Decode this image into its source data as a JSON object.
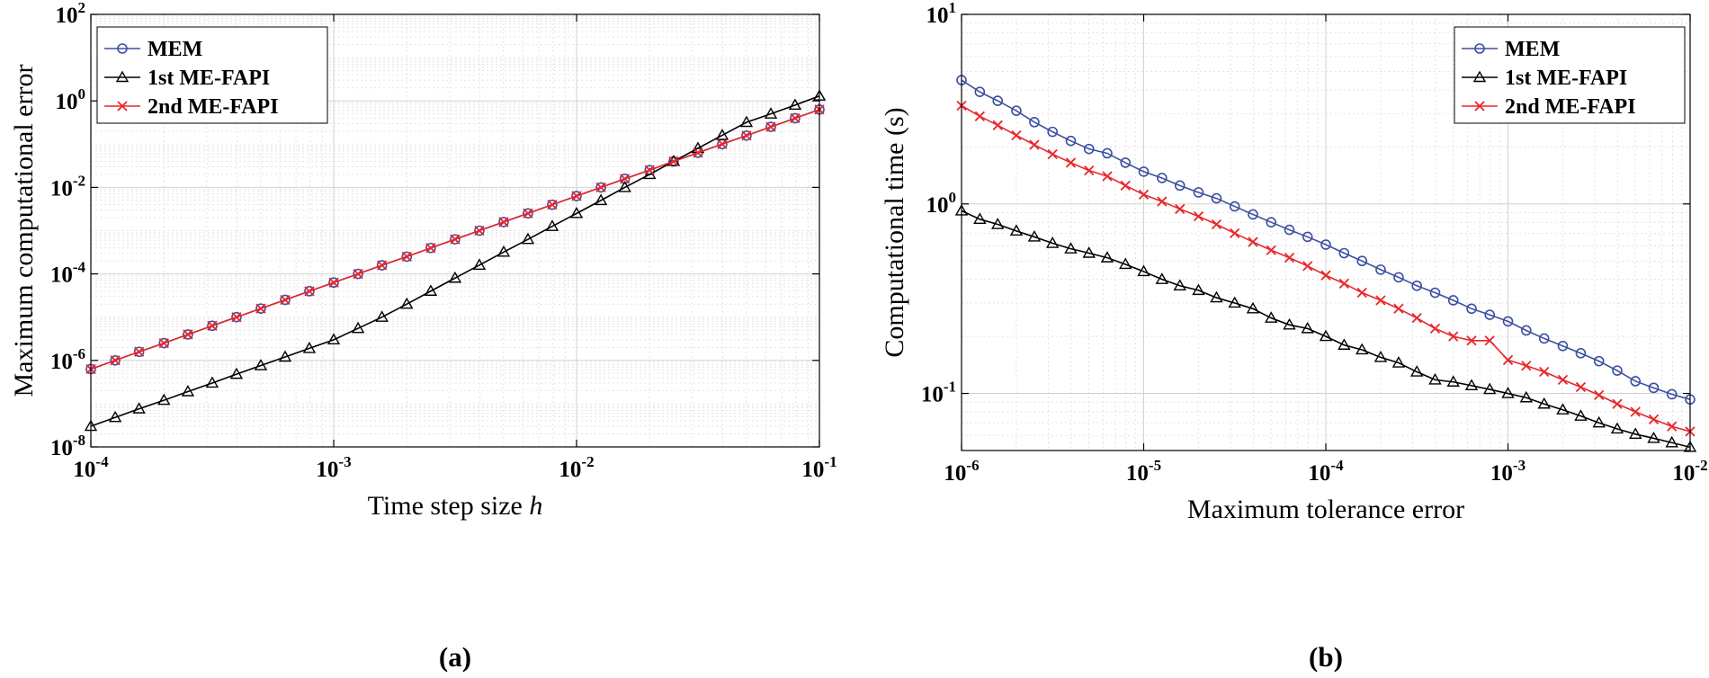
{
  "chart_data": [
    {
      "type": "line",
      "panel_label": "(a)",
      "xlabel": "Time step size h",
      "ylabel": "Maximum computational error",
      "xscale": "log",
      "yscale": "log",
      "xlim": [
        0.0001,
        0.1
      ],
      "ylim": [
        1e-08,
        100
      ],
      "xticks": [
        0.0001,
        0.001,
        0.01,
        0.1
      ],
      "yticks": [
        1e-08,
        1e-06,
        0.0001,
        0.01,
        1,
        100
      ],
      "grid": true,
      "legend": {
        "position": "top-left",
        "entries": [
          "MEM",
          "1st ME-FAPI",
          "2nd ME-FAPI"
        ]
      },
      "x": [
        0.0001,
        0.000126,
        0.000158,
        0.0002,
        0.000251,
        0.000316,
        0.000398,
        0.000501,
        0.000631,
        0.000794,
        0.001,
        0.00126,
        0.00158,
        0.002,
        0.00251,
        0.00316,
        0.00398,
        0.00501,
        0.00631,
        0.00794,
        0.01,
        0.0126,
        0.0158,
        0.02,
        0.0251,
        0.0316,
        0.0398,
        0.0501,
        0.0631,
        0.0794,
        0.1
      ],
      "series": [
        {
          "name": "MEM",
          "color": "#3d4fa0",
          "marker": "circle",
          "values": [
            6.3e-07,
            1e-06,
            1.58e-06,
            2.51e-06,
            3.98e-06,
            6.31e-06,
            1e-05,
            1.58e-05,
            2.51e-05,
            3.98e-05,
            6.31e-05,
            0.0001,
            0.000158,
            0.000251,
            0.000398,
            0.000631,
            0.001,
            0.00158,
            0.00251,
            0.00398,
            0.00631,
            0.01,
            0.0158,
            0.0251,
            0.0398,
            0.0631,
            0.1,
            0.158,
            0.251,
            0.398,
            0.631
          ]
        },
        {
          "name": "1st ME-FAPI",
          "color": "#000000",
          "marker": "triangle",
          "values": [
            3e-08,
            4.8e-08,
            7.6e-08,
            1.2e-07,
            1.9e-07,
            3e-07,
            4.8e-07,
            7.6e-07,
            1.2e-06,
            1.9e-06,
            3e-06,
            5.5e-06,
            1e-05,
            2e-05,
            4e-05,
            8e-05,
            0.00016,
            0.00032,
            0.00063,
            0.00126,
            0.0025,
            0.005,
            0.01,
            0.02,
            0.04,
            0.08,
            0.16,
            0.32,
            0.5,
            0.8,
            1.3
          ]
        },
        {
          "name": "2nd ME-FAPI",
          "color": "#e8262a",
          "marker": "x",
          "values": [
            6.3e-07,
            1e-06,
            1.58e-06,
            2.51e-06,
            3.98e-06,
            6.31e-06,
            1e-05,
            1.58e-05,
            2.51e-05,
            3.98e-05,
            6.31e-05,
            0.0001,
            0.000158,
            0.000251,
            0.000398,
            0.000631,
            0.001,
            0.00158,
            0.00251,
            0.00398,
            0.00631,
            0.01,
            0.0158,
            0.0251,
            0.0398,
            0.0631,
            0.1,
            0.158,
            0.251,
            0.398,
            0.631
          ]
        }
      ]
    },
    {
      "type": "line",
      "panel_label": "(b)",
      "xlabel": "Maximum tolerance error",
      "ylabel": "Computational time (s)",
      "xscale": "log",
      "yscale": "log",
      "xlim": [
        1e-06,
        0.01
      ],
      "ylim": [
        0.05,
        10
      ],
      "xticks": [
        1e-06,
        1e-05,
        0.0001,
        0.001,
        0.01
      ],
      "yticks": [
        0.1,
        1,
        10
      ],
      "grid": true,
      "legend": {
        "position": "top-right",
        "entries": [
          "MEM",
          "1st ME-FAPI",
          "2nd ME-FAPI"
        ]
      },
      "x": [
        1e-06,
        1.26e-06,
        1.58e-06,
        2e-06,
        2.51e-06,
        3.16e-06,
        3.98e-06,
        5.01e-06,
        6.31e-06,
        7.94e-06,
        1e-05,
        1.26e-05,
        1.58e-05,
        2e-05,
        2.51e-05,
        3.16e-05,
        3.98e-05,
        5.01e-05,
        6.31e-05,
        7.94e-05,
        0.0001,
        0.000126,
        0.000158,
        0.0002,
        0.000251,
        0.000316,
        0.000398,
        0.000501,
        0.000631,
        0.000794,
        0.001,
        0.00126,
        0.00158,
        0.002,
        0.00251,
        0.00316,
        0.00398,
        0.00501,
        0.00631,
        0.00794,
        0.01
      ],
      "series": [
        {
          "name": "MEM",
          "color": "#3d4fa0",
          "marker": "circle",
          "values": [
            4.5,
            3.9,
            3.5,
            3.1,
            2.7,
            2.4,
            2.15,
            1.95,
            1.85,
            1.65,
            1.48,
            1.37,
            1.25,
            1.15,
            1.07,
            0.97,
            0.88,
            0.8,
            0.73,
            0.67,
            0.61,
            0.55,
            0.5,
            0.45,
            0.41,
            0.37,
            0.34,
            0.31,
            0.28,
            0.26,
            0.24,
            0.215,
            0.195,
            0.178,
            0.163,
            0.148,
            0.132,
            0.116,
            0.107,
            0.099,
            0.093
          ]
        },
        {
          "name": "1st ME-FAPI",
          "color": "#000000",
          "marker": "triangle",
          "values": [
            0.92,
            0.83,
            0.78,
            0.72,
            0.67,
            0.62,
            0.58,
            0.55,
            0.52,
            0.48,
            0.44,
            0.4,
            0.37,
            0.35,
            0.32,
            0.3,
            0.28,
            0.25,
            0.23,
            0.22,
            0.2,
            0.18,
            0.17,
            0.155,
            0.145,
            0.13,
            0.118,
            0.115,
            0.11,
            0.105,
            0.1,
            0.095,
            0.088,
            0.082,
            0.076,
            0.07,
            0.065,
            0.061,
            0.058,
            0.055,
            0.052
          ]
        },
        {
          "name": "2nd ME-FAPI",
          "color": "#e8262a",
          "marker": "x",
          "values": [
            3.3,
            2.9,
            2.6,
            2.3,
            2.05,
            1.83,
            1.65,
            1.5,
            1.4,
            1.25,
            1.12,
            1.03,
            0.94,
            0.86,
            0.78,
            0.7,
            0.63,
            0.57,
            0.52,
            0.47,
            0.42,
            0.38,
            0.34,
            0.31,
            0.28,
            0.25,
            0.22,
            0.2,
            0.19,
            0.19,
            0.15,
            0.14,
            0.13,
            0.118,
            0.108,
            0.098,
            0.088,
            0.08,
            0.073,
            0.067,
            0.063
          ]
        }
      ]
    }
  ]
}
